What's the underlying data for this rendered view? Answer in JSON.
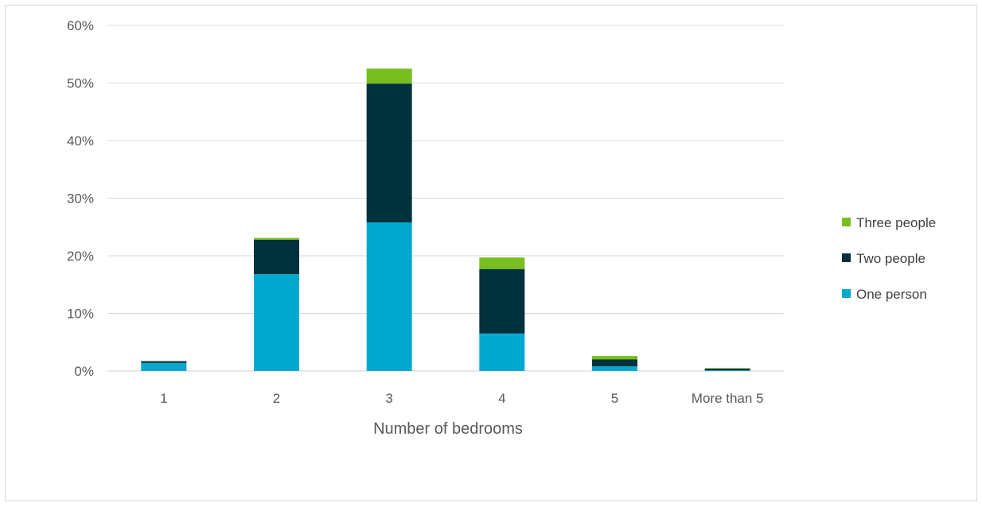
{
  "chart_data": {
    "type": "bar",
    "stacked": true,
    "xlabel": "Number of bedrooms",
    "ylabel": "",
    "title": "",
    "ylim": [
      0,
      60
    ],
    "yticks": [
      0,
      10,
      20,
      30,
      40,
      50,
      60
    ],
    "ytick_format": "percent",
    "grid": true,
    "legend_position": "right",
    "categories": [
      "1",
      "2",
      "3",
      "4",
      "5",
      "More than 5"
    ],
    "series": [
      {
        "name": "One person",
        "color": "#00a9ce",
        "values": [
          1.4,
          16.8,
          25.8,
          6.5,
          0.8,
          0.1
        ]
      },
      {
        "name": "Two people",
        "color": "#00313d",
        "values": [
          0.3,
          6.0,
          24.1,
          11.2,
          1.2,
          0.3
        ]
      },
      {
        "name": "Three people",
        "color": "#78be20",
        "values": [
          0.0,
          0.3,
          2.6,
          2.0,
          0.6,
          0.1
        ]
      }
    ],
    "legend_order": [
      "Three people",
      "Two people",
      "One person"
    ]
  }
}
